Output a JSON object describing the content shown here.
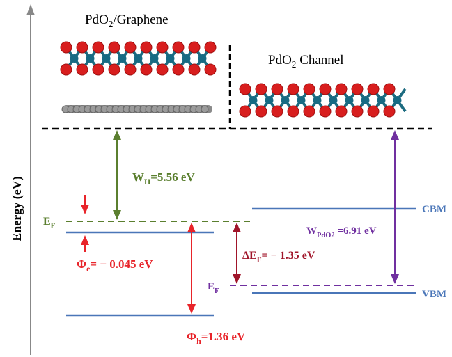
{
  "axis_label": "Energy (eV)",
  "structure_left_title": {
    "main": "PdO",
    "sub": "2",
    "rest": "/Graphene"
  },
  "structure_right_title": {
    "main": "PdO",
    "sub": "2",
    "rest": " Channel"
  },
  "labels": {
    "w_h": {
      "main": "W",
      "sub": "H",
      "rest": "=5.56 eV"
    },
    "ef_left": {
      "main": "E",
      "sub": "F"
    },
    "phi_e": {
      "main": "Φ",
      "sub": "e",
      "rest": "= − 0.045 eV"
    },
    "phi_h": {
      "main": "Φ",
      "sub": "h",
      "rest": "=1.36 eV"
    },
    "delta_ef": {
      "main": "ΔE",
      "sub": "F",
      "rest": "= − 1.35 eV"
    },
    "w_pdo2": {
      "main": "W",
      "sub": "PdO2",
      "rest": " =6.91 eV"
    },
    "ef_right": {
      "main": "E",
      "sub": "F"
    },
    "cbm": {
      "main": "CBM"
    },
    "vbm": {
      "main": "VBM"
    }
  }
}
